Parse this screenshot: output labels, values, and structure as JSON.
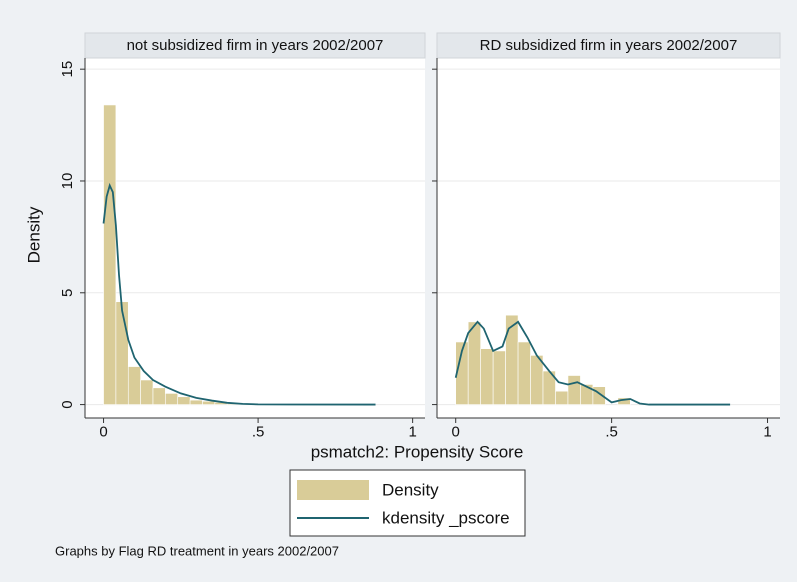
{
  "chart_data": {
    "type": "histogram",
    "y_label": "Density",
    "x_label": "psmatch2: Propensity Score",
    "note": "Graphs by Flag RD treatment in years 2002/2007",
    "series": [
      {
        "name": "Density",
        "color": "#d9cc98"
      },
      {
        "name": "kdensity _pscore",
        "color": "#1f6470"
      }
    ],
    "bins": [
      0,
      0.04,
      0.08,
      0.12,
      0.16,
      0.2,
      0.24,
      0.28,
      0.32,
      0.36,
      0.4,
      0.44,
      0.48,
      0.52,
      0.56,
      0.6,
      0.64,
      0.68,
      0.72,
      0.76,
      0.8,
      0.84,
      0.88
    ],
    "xlim": [
      -0.06,
      1.04
    ],
    "ylim": [
      -0.6,
      15.5
    ],
    "xticks": [
      0,
      {
        "value": 0.5,
        "label": ".5"
      },
      1
    ],
    "yticks": [
      0,
      5,
      10,
      15
    ],
    "panels": [
      {
        "title": "not subsidized firm in years 2002/2007",
        "values": [
          13.4,
          4.6,
          1.7,
          1.1,
          0.75,
          0.5,
          0.35,
          0.2,
          0.15,
          0.1,
          0.05,
          0.03,
          0.02,
          0.01,
          0.01,
          0,
          0,
          0,
          0,
          0,
          0,
          0.01
        ],
        "kde": {
          "x": [
            0,
            0.01,
            0.02,
            0.03,
            0.04,
            0.05,
            0.06,
            0.08,
            0.1,
            0.13,
            0.16,
            0.2,
            0.25,
            0.3,
            0.35,
            0.4,
            0.45,
            0.5,
            0.6,
            0.88
          ],
          "y": [
            8.1,
            9.3,
            9.8,
            9.5,
            8,
            5.8,
            4.2,
            2.9,
            2.1,
            1.5,
            1.1,
            0.8,
            0.5,
            0.3,
            0.18,
            0.08,
            0.03,
            0.01,
            0.005,
            0
          ]
        }
      },
      {
        "title": "RD subsidized firm in years 2002/2007",
        "values": [
          2.8,
          3.7,
          2.5,
          2.4,
          4.0,
          2.8,
          2.2,
          1.5,
          0.6,
          1.3,
          0.9,
          0.8,
          0,
          0.3,
          0,
          0,
          0,
          0,
          0,
          0,
          0,
          0
        ],
        "kde": {
          "x": [
            0,
            0.02,
            0.04,
            0.07,
            0.09,
            0.12,
            0.15,
            0.17,
            0.2,
            0.23,
            0.26,
            0.3,
            0.33,
            0.36,
            0.39,
            0.42,
            0.45,
            0.48,
            0.5,
            0.53,
            0.56,
            0.59,
            0.62,
            0.88
          ],
          "y": [
            1.2,
            2.4,
            3.2,
            3.7,
            3.4,
            2.4,
            2.6,
            3.4,
            3.7,
            3.0,
            2.2,
            1.5,
            1.0,
            0.9,
            1.0,
            0.8,
            0.6,
            0.3,
            0.1,
            0.2,
            0.25,
            0.05,
            0,
            0
          ]
        }
      }
    ]
  }
}
